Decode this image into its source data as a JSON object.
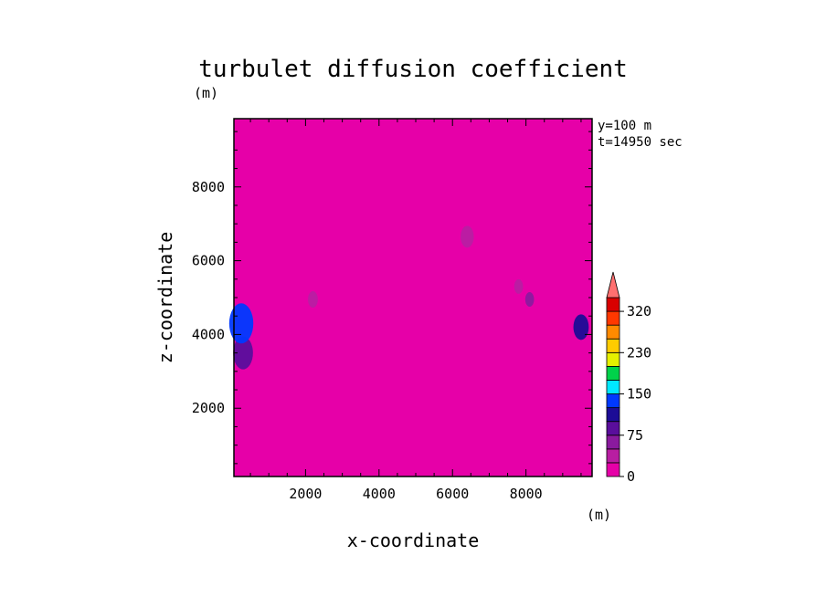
{
  "chart_data": {
    "type": "heatmap",
    "title": "turbulet diffusion coefficient",
    "xlabel": "x-coordinate",
    "ylabel": "z-coordinate",
    "x_unit": "(m)",
    "y_unit": "(m)",
    "annotation_y": "y=100 m",
    "annotation_t": "t=14950 sec",
    "xlim": [
      50,
      9800
    ],
    "ylim": [
      150,
      9850
    ],
    "xticks": [
      2000,
      4000,
      6000,
      8000
    ],
    "xtick_labels": [
      "2000",
      "4000",
      "6000",
      "8000"
    ],
    "yticks": [
      2000,
      4000,
      6000,
      8000
    ],
    "ytick_labels": [
      "2000",
      "4000",
      "6000",
      "8000"
    ],
    "colorbar": {
      "levels": [
        0,
        25,
        50,
        75,
        100,
        125,
        150,
        175,
        200,
        230,
        260,
        290,
        320
      ],
      "tick_values": [
        0,
        75,
        150,
        230,
        320
      ],
      "tick_labels": [
        "0",
        "75",
        "150",
        "230",
        "320"
      ],
      "extend": "max"
    },
    "background_level": "0-25",
    "features": [
      {
        "x": 300,
        "z": 3500,
        "level": "75-100",
        "note": "left boundary cluster"
      },
      {
        "x": 250,
        "z": 4300,
        "level": "125-150",
        "note": "left boundary peak"
      },
      {
        "x": 9500,
        "z": 4200,
        "level": "100-125",
        "note": "right boundary peak"
      },
      {
        "x": 2200,
        "z": 4950,
        "level": "25-50"
      },
      {
        "x": 6400,
        "z": 6650,
        "level": "25-50"
      },
      {
        "x": 8100,
        "z": 4950,
        "level": "50-75"
      },
      {
        "x": 7800,
        "z": 5300,
        "level": "25-50"
      }
    ]
  },
  "colors": {
    "background_fill": "#e600a8",
    "plot_frame": "#000000",
    "colorbar": [
      "#e600a8",
      "#b81ea2",
      "#8a1a9e",
      "#5a0e9c",
      "#1c0c96",
      "#0039ff",
      "#00e8ff",
      "#00d24a",
      "#e6f000",
      "#ffcc00",
      "#ff8a00",
      "#ff3800",
      "#d80000"
    ],
    "extend_triangle": "#ff7070"
  }
}
